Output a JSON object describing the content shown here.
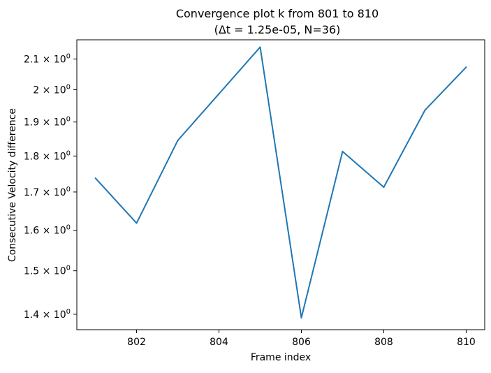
{
  "chart_data": {
    "type": "line",
    "title_line1": "Convergence plot k from 801 to 810",
    "title_line2": "(Δt = 1.25e-05, N=36)",
    "xlabel": "Frame index",
    "ylabel": "Consecutive Velocity difference",
    "y_scale": "log",
    "grid": false,
    "legend": "none",
    "xlim": [
      800.55,
      810.45
    ],
    "ylim": [
      1.366,
      2.165
    ],
    "x_ticks": [
      {
        "value": 802,
        "label": "802"
      },
      {
        "value": 804,
        "label": "804"
      },
      {
        "value": 806,
        "label": "806"
      },
      {
        "value": 808,
        "label": "808"
      },
      {
        "value": 810,
        "label": "810"
      }
    ],
    "y_ticks": [
      {
        "value": 1.4,
        "mantissa": "1.4",
        "base": "10",
        "exponent": "0"
      },
      {
        "value": 1.5,
        "mantissa": "1.5",
        "base": "10",
        "exponent": "0"
      },
      {
        "value": 1.6,
        "mantissa": "1.6",
        "base": "10",
        "exponent": "0"
      },
      {
        "value": 1.7,
        "mantissa": "1.7",
        "base": "10",
        "exponent": "0"
      },
      {
        "value": 1.8,
        "mantissa": "1.8",
        "base": "10",
        "exponent": "0"
      },
      {
        "value": 1.9,
        "mantissa": "1.9",
        "base": "10",
        "exponent": "0"
      },
      {
        "value": 2.0,
        "mantissa": "2",
        "base": "10",
        "exponent": "0"
      },
      {
        "value": 2.1,
        "mantissa": "2.1",
        "base": "10",
        "exponent": "0"
      }
    ],
    "series": [
      {
        "color": "#1f77b4",
        "x": [
          801,
          802,
          803,
          804,
          805,
          806,
          807,
          808,
          809,
          810
        ],
        "y": [
          1.738,
          1.618,
          1.845,
          1.987,
          2.14,
          1.392,
          1.813,
          1.713,
          1.936,
          2.073
        ]
      }
    ]
  }
}
